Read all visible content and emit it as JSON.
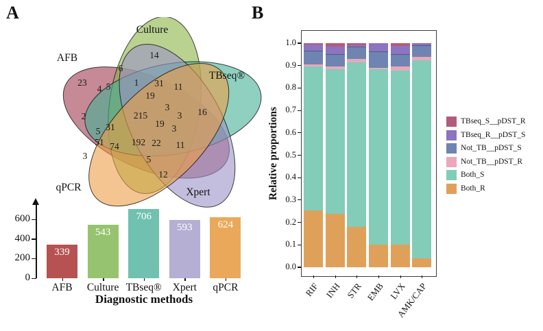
{
  "panelA": {
    "label": "A"
  },
  "panelB": {
    "label": "B"
  },
  "chart_data": [
    {
      "type": "venn",
      "title": "",
      "sets": [
        {
          "name": "AFB",
          "color": "#a03a50"
        },
        {
          "name": "Culture",
          "color": "#8ab446"
        },
        {
          "name": "TBseq®",
          "color": "#44b196"
        },
        {
          "name": "Xpert",
          "color": "#9b93c6"
        },
        {
          "name": "qPCR",
          "color": "#ed9e46"
        }
      ],
      "region_counts": [
        23,
        14,
        6,
        4,
        5,
        1,
        31,
        11,
        19,
        3,
        16,
        2,
        215,
        3,
        31,
        19,
        3,
        5,
        51,
        74,
        192,
        22,
        11,
        3,
        5,
        12
      ]
    },
    {
      "type": "bar",
      "categories": [
        "AFB",
        "Culture",
        "TBseq®",
        "Xpert",
        "qPCR"
      ],
      "values": [
        339,
        543,
        706,
        593,
        624
      ],
      "colors": [
        "#b65251",
        "#96c36f",
        "#70c1af",
        "#b5afd3",
        "#eaa95a"
      ],
      "title": "",
      "xlabel": "Diagnostic methods",
      "ylabel": "",
      "yticks": [
        0,
        200,
        400,
        600
      ],
      "ylim": [
        0,
        760
      ]
    },
    {
      "type": "bar",
      "stacked": true,
      "categories": [
        "RIF",
        "INH",
        "STR",
        "EMB",
        "LVX",
        "AMK/CAP"
      ],
      "series": [
        {
          "name": "Both_R",
          "color": "#dfa159",
          "values": [
            0.255,
            0.24,
            0.18,
            0.1,
            0.1,
            0.04
          ]
        },
        {
          "name": "Both_S",
          "color": "#82ccb8",
          "values": [
            0.64,
            0.645,
            0.735,
            0.785,
            0.778,
            0.885
          ]
        },
        {
          "name": "Not_TB__pDST_R",
          "color": "#e9a8bc",
          "values": [
            0.01,
            0.012,
            0.015,
            0.006,
            0.017,
            0.015
          ]
        },
        {
          "name": "Not_TB__pDST_S",
          "color": "#6f84b0",
          "values": [
            0.062,
            0.055,
            0.055,
            0.071,
            0.055,
            0.05
          ]
        },
        {
          "name": "TBseq_R__pDST_S",
          "color": "#8c74c0",
          "values": [
            0.028,
            0.033,
            0.006,
            0.038,
            0.038,
            0.007
          ]
        },
        {
          "name": "TBseq_S__pDST_R",
          "color": "#b25c7c",
          "values": [
            0.005,
            0.015,
            0.009,
            0.0,
            0.012,
            0.003
          ]
        }
      ],
      "legend": [
        "TBseq_S__pDST_R",
        "TBseq_R__pDST_S",
        "Not_TB__pDST_S",
        "Not_TB__pDST_R",
        "Both_S",
        "Both_R"
      ],
      "legend_position": "right",
      "title": "",
      "xlabel": "",
      "ylabel": "Relative proportions",
      "yticks": [
        "0.0",
        "0.1",
        "0.2",
        "0.3",
        "0.4",
        "0.5",
        "0.6",
        "0.7",
        "0.8",
        "0.9",
        "1.0"
      ],
      "ylim": [
        0,
        1
      ],
      "grid": false
    }
  ]
}
